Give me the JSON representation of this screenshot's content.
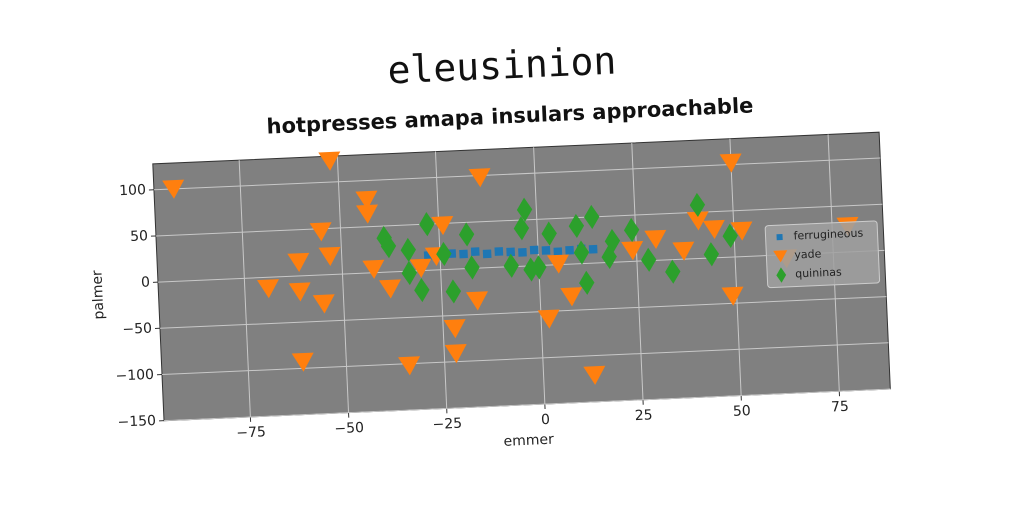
{
  "chart_data": {
    "type": "scatter",
    "title": "eleusinion",
    "subtitle": "hotpresses amapa insulars approachable",
    "xlabel": "emmer",
    "ylabel": "palmer",
    "xlim": [
      -97,
      88
    ],
    "ylim": [
      -150,
      128
    ],
    "xticks": [
      {
        "value": -75,
        "label": "−75"
      },
      {
        "value": -50,
        "label": "−50"
      },
      {
        "value": -25,
        "label": "−25"
      },
      0,
      25,
      50,
      75
    ],
    "yticks": [
      {
        "value": -150,
        "label": "−150"
      },
      {
        "value": -100,
        "label": "−100"
      },
      {
        "value": -50,
        "label": "−50"
      },
      0,
      50,
      100
    ],
    "grid": true,
    "legend": "center right",
    "series": [
      {
        "name": "ferrugineous",
        "color": "#1f77b4",
        "marker": "square",
        "x": [
          -28,
          -25,
          -22,
          -19,
          -16,
          -13,
          -10,
          -7,
          -4,
          -1,
          2,
          5,
          8,
          11,
          14
        ],
        "values": [
          16,
          15,
          17,
          16,
          18,
          15,
          17,
          16,
          15,
          17,
          16,
          14,
          15,
          16,
          15
        ]
      },
      {
        "name": "yade",
        "color": "#ff7f0e",
        "marker": "triangle_down",
        "x": [
          -92,
          -52,
          -69,
          -61,
          -61,
          -61,
          -55,
          -53,
          -55,
          -43,
          -43,
          -42,
          -38,
          -34,
          -30,
          -26,
          -24,
          -22,
          -22,
          -16,
          -14,
          2,
          5,
          8,
          13,
          24,
          30,
          37,
          41,
          45,
          49,
          50,
          52,
          63,
          79
        ],
        "values": [
          100,
          123,
          -12,
          15,
          -17,
          -93,
          47,
          20,
          -31,
          79,
          64,
          4,
          -18,
          -102,
          3,
          15,
          48,
          -64,
          -91,
          -35,
          98,
          -58,
          1,
          -35,
          -121,
          12,
          23,
          9,
          41,
          31,
          -42,
          102,
          28,
          -4,
          28
        ]
      },
      {
        "name": "quininas",
        "color": "#2ca02c",
        "marker": "diamond",
        "x": [
          -39,
          -38,
          -33,
          -33,
          -30,
          -28,
          -24,
          -22,
          -18,
          -17,
          -7,
          -4,
          -3,
          -2,
          0,
          3,
          10,
          11,
          12,
          14,
          18,
          19,
          24,
          28,
          34,
          41,
          44,
          49
        ],
        "values": [
          37,
          28,
          23,
          -2,
          -21,
          50,
          17,
          -24,
          37,
          1,
          1,
          41,
          61,
          -4,
          -2,
          34,
          41,
          12,
          -21,
          50,
          6,
          23,
          34,
          1,
          -13,
          58,
          4,
          23
        ]
      }
    ]
  }
}
